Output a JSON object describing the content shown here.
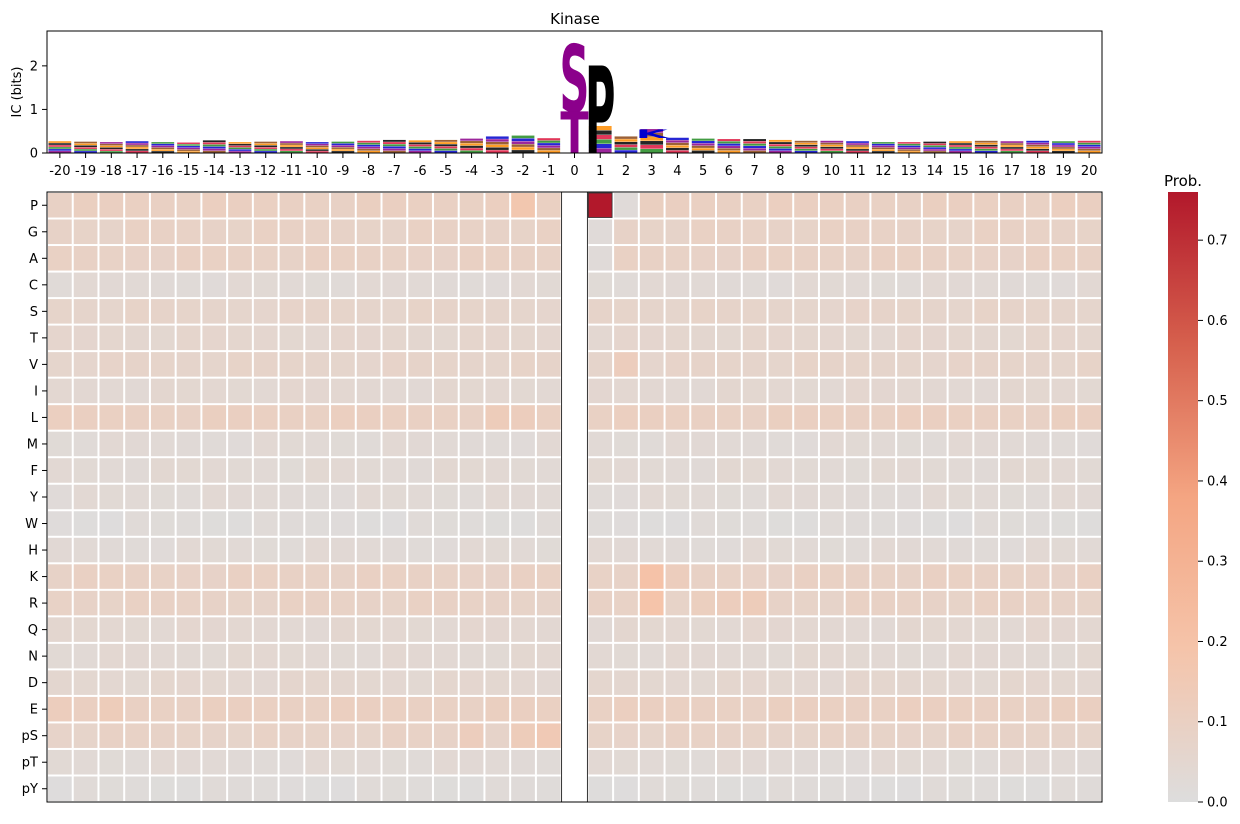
{
  "chart_data": [
    {
      "type": "sequence-logo",
      "title": "Kinase",
      "ylabel": "IC (bits)",
      "ylim": [
        0,
        2.8
      ],
      "yticks": [
        "0",
        "1",
        "2"
      ],
      "positions": [
        "-20",
        "-19",
        "-18",
        "-17",
        "-16",
        "-15",
        "-14",
        "-13",
        "-12",
        "-11",
        "-10",
        "-9",
        "-8",
        "-7",
        "-6",
        "-5",
        "-4",
        "-3",
        "-2",
        "-1",
        "0",
        "1",
        "2",
        "3",
        "4",
        "5",
        "6",
        "7",
        "8",
        "9",
        "10",
        "11",
        "12",
        "13",
        "14",
        "15",
        "16",
        "17",
        "18",
        "19",
        "20"
      ],
      "major_letters": [
        {
          "position": "0",
          "letter": "S",
          "bits": 1.55,
          "color": "#8b008b"
        },
        {
          "position": "0",
          "letter": "T",
          "bits": 0.95,
          "color": "#8b008b"
        },
        {
          "position": "1",
          "letter": "P",
          "bits": 2.0,
          "color": "#000000"
        },
        {
          "position": "3",
          "letter": "K",
          "bits": 0.2,
          "color": "#0000cd"
        }
      ],
      "background_ic": [
        0.27,
        0.26,
        0.25,
        0.27,
        0.25,
        0.24,
        0.29,
        0.25,
        0.26,
        0.27,
        0.25,
        0.26,
        0.28,
        0.3,
        0.29,
        0.3,
        0.33,
        0.38,
        0.4,
        0.34,
        0,
        0.62,
        0.38,
        0.55,
        0.35,
        0.33,
        0.32,
        0.32,
        0.3,
        0.28,
        0.28,
        0.27,
        0.25,
        0.25,
        0.26,
        0.27,
        0.28,
        0.27,
        0.28,
        0.27,
        0.28
      ]
    },
    {
      "type": "heatmap",
      "x": [
        "-20",
        "-19",
        "-18",
        "-17",
        "-16",
        "-15",
        "-14",
        "-13",
        "-12",
        "-11",
        "-10",
        "-9",
        "-8",
        "-7",
        "-6",
        "-5",
        "-4",
        "-3",
        "-2",
        "-1",
        "0",
        "1",
        "2",
        "3",
        "4",
        "5",
        "6",
        "7",
        "8",
        "9",
        "10",
        "11",
        "12",
        "13",
        "14",
        "15",
        "16",
        "17",
        "18",
        "19",
        "20"
      ],
      "y": [
        "P",
        "G",
        "A",
        "C",
        "S",
        "T",
        "V",
        "I",
        "L",
        "M",
        "F",
        "Y",
        "W",
        "H",
        "K",
        "R",
        "Q",
        "N",
        "D",
        "E",
        "pS",
        "pT",
        "pY"
      ],
      "masked_column": "0",
      "colorbar": {
        "label": "Prob.",
        "min": 0.0,
        "max": 0.76,
        "ticks": [
          "0.0",
          "0.1",
          "0.2",
          "0.3",
          "0.4",
          "0.5",
          "0.6",
          "0.7"
        ],
        "colors": [
          "#dddddd",
          "#f5c4aa",
          "#f4a582",
          "#d6604d",
          "#b2182b"
        ]
      },
      "row_base": {
        "P": 0.1,
        "G": 0.085,
        "A": 0.09,
        "C": 0.03,
        "S": 0.07,
        "T": 0.055,
        "V": 0.07,
        "I": 0.045,
        "L": 0.1,
        "M": 0.03,
        "F": 0.035,
        "Y": 0.03,
        "W": 0.015,
        "H": 0.03,
        "K": 0.09,
        "R": 0.085,
        "Q": 0.045,
        "N": 0.04,
        "D": 0.05,
        "E": 0.1,
        "pS": 0.08,
        "pT": 0.03,
        "pY": 0.015
      },
      "highlights": [
        {
          "row": "P",
          "col": "1",
          "value": 0.76
        },
        {
          "row": "P",
          "col": "2",
          "value": 0.02
        },
        {
          "row": "G",
          "col": "1",
          "value": 0.02
        },
        {
          "row": "A",
          "col": "1",
          "value": 0.02
        },
        {
          "row": "K",
          "col": "3",
          "value": 0.2
        },
        {
          "row": "R",
          "col": "3",
          "value": 0.19
        },
        {
          "row": "P",
          "col": "-2",
          "value": 0.17
        },
        {
          "row": "pS",
          "col": "-1",
          "value": 0.15
        },
        {
          "row": "pS",
          "col": "-2",
          "value": 0.13
        },
        {
          "row": "pS",
          "col": "-4",
          "value": 0.12
        },
        {
          "row": "K",
          "col": "4",
          "value": 0.12
        },
        {
          "row": "R",
          "col": "5",
          "value": 0.11
        },
        {
          "row": "R",
          "col": "6",
          "value": 0.12
        },
        {
          "row": "R",
          "col": "7",
          "value": 0.13
        },
        {
          "row": "V",
          "col": "2",
          "value": 0.12
        },
        {
          "row": "L",
          "col": "-3",
          "value": 0.13
        },
        {
          "row": "L",
          "col": "-2",
          "value": 0.12
        },
        {
          "row": "E",
          "col": "-18",
          "value": 0.13
        },
        {
          "row": "E",
          "col": "-20",
          "value": 0.12
        }
      ]
    }
  ]
}
